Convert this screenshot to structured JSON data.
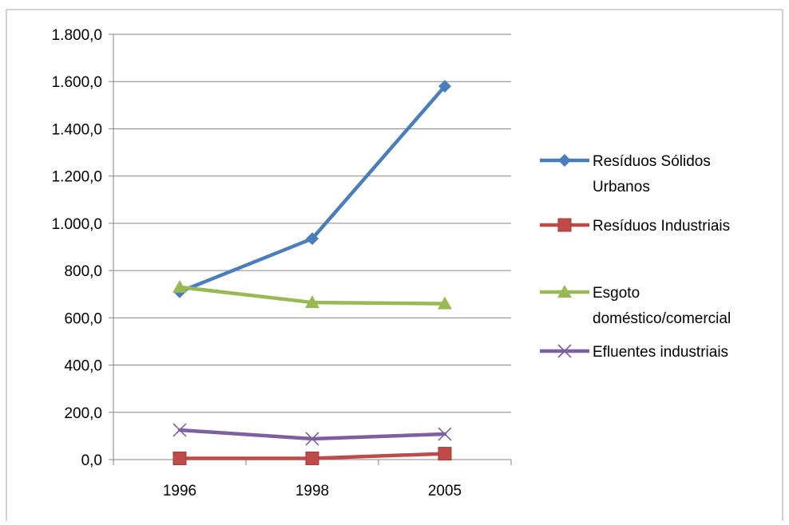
{
  "chart_data": {
    "type": "line",
    "title": "",
    "xlabel": "",
    "ylabel": "",
    "categories": [
      "1996",
      "1998",
      "2005"
    ],
    "ylim": [
      0,
      1800
    ],
    "y_ticks": [
      0,
      200,
      400,
      600,
      800,
      1000,
      1200,
      1400,
      1600,
      1800
    ],
    "y_tick_labels": [
      "0,0",
      "200,0",
      "400,0",
      "600,0",
      "800,0",
      "1.000,0",
      "1.200,0",
      "1.400,0",
      "1.600,0",
      "1.800,0"
    ],
    "grid": true,
    "legend_position": "right",
    "series": [
      {
        "name": "Resíduos Sólidos Urbanos",
        "name_lines": [
          "Resíduos Sólidos",
          "Urbanos"
        ],
        "color": "#4a7ebb",
        "marker": "diamond",
        "values": [
          710,
          935,
          1580
        ]
      },
      {
        "name": "Resíduos Industriais",
        "name_lines": [
          "Resíduos Industriais"
        ],
        "color": "#be4b48",
        "marker": "square",
        "values": [
          5,
          5,
          25
        ]
      },
      {
        "name": "Esgoto doméstico/comercial",
        "name_lines": [
          "Esgoto",
          "doméstico/comercial"
        ],
        "color": "#98b954",
        "marker": "triangle",
        "values": [
          730,
          665,
          660
        ]
      },
      {
        "name": "Efluentes industriais",
        "name_lines": [
          "Efluentes industriais"
        ],
        "color": "#7d60a0",
        "marker": "x",
        "values": [
          125,
          88,
          108
        ]
      }
    ]
  }
}
